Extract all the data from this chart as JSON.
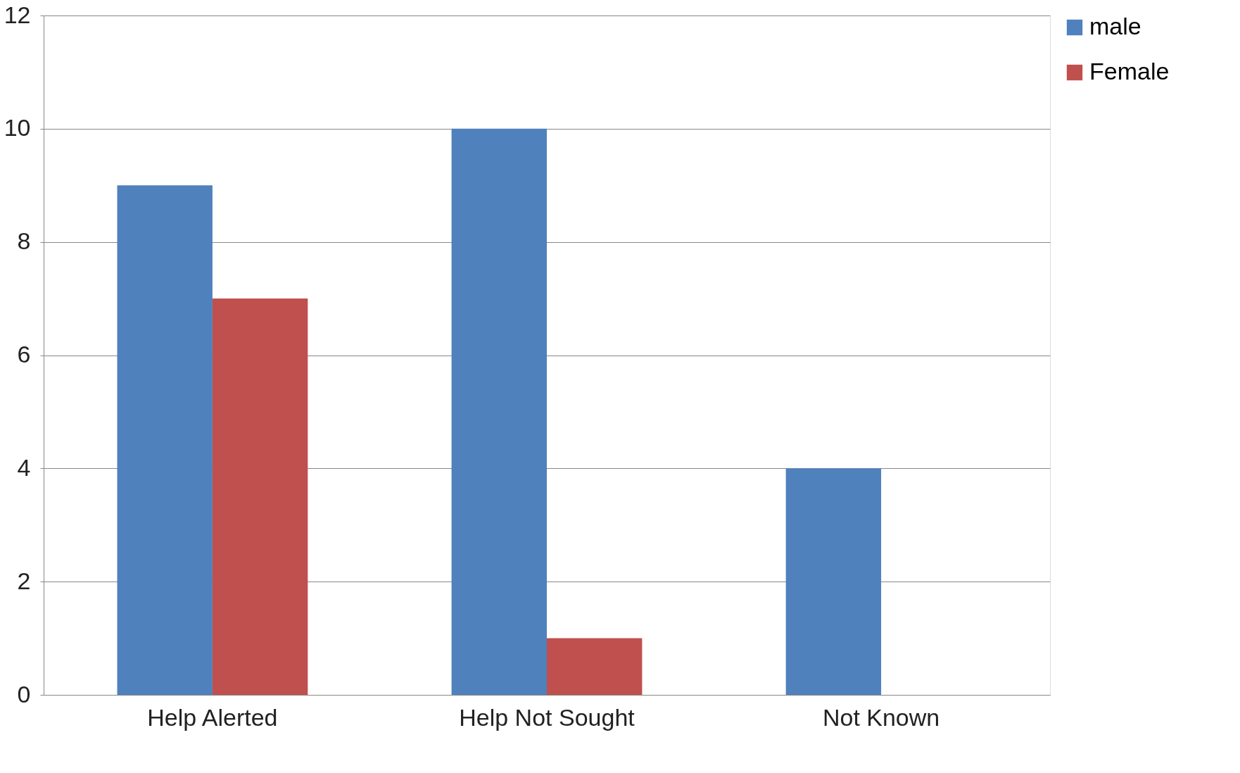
{
  "chart_data": {
    "type": "bar",
    "categories": [
      "Help Alerted",
      "Help Not Sought",
      "Not Known"
    ],
    "series": [
      {
        "name": "male",
        "color": "#4f81bd",
        "values": [
          9,
          10,
          4
        ]
      },
      {
        "name": "Female",
        "color": "#c0504d",
        "values": [
          7,
          1,
          0
        ]
      }
    ],
    "ylim": [
      0,
      12
    ],
    "yticks": [
      0,
      2,
      4,
      6,
      8,
      10,
      12
    ],
    "grid": "y",
    "legend": "right"
  }
}
